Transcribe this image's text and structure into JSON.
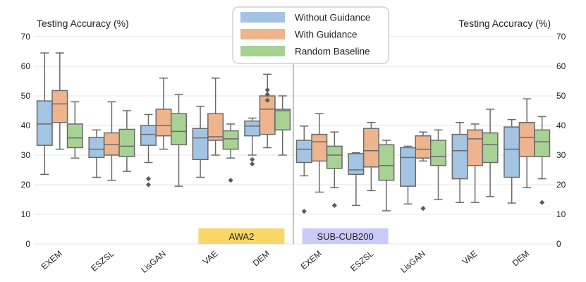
{
  "chart_data": {
    "type": "box",
    "ylabel_left": "Testing Accuracy (%)",
    "ylabel_right": "Testing Accuracy (%)",
    "ylim": [
      0,
      70
    ],
    "yticks": [
      0,
      10,
      20,
      30,
      40,
      50,
      60,
      70
    ],
    "grid": "horizontal",
    "legend_position": "top-center",
    "datasets": [
      {
        "name": "AWA2",
        "categories": [
          "EXEM",
          "ESZSL",
          "LisGAN",
          "VAE",
          "DEM"
        ],
        "color": "#f9d766"
      },
      {
        "name": "SUB-CUB200",
        "categories": [
          "EXEM",
          "ESZSL",
          "LisGAN",
          "VAE",
          "DEM"
        ],
        "color": "#c9c9fa"
      }
    ],
    "categories": [
      "EXEM",
      "ESZSL",
      "LisGAN",
      "VAE",
      "DEM",
      "EXEM",
      "ESZSL",
      "LisGAN",
      "VAE",
      "DEM"
    ],
    "series": [
      {
        "name": "Without Guidance",
        "color": "#a4c4e4",
        "boxes": [
          {
            "whislo": 23.5,
            "q1": 33.3,
            "med": 40.5,
            "q3": 48.3,
            "whishi": 64.5,
            "fliers": []
          },
          {
            "whislo": 22.5,
            "q1": 29.2,
            "med": 32.0,
            "q3": 36.0,
            "whishi": 38.5,
            "fliers": []
          },
          {
            "whislo": 27.5,
            "q1": 33.3,
            "med": 37.0,
            "q3": 40.0,
            "whishi": 43.7,
            "fliers": [
              20.0,
              22.0
            ]
          },
          {
            "whislo": 22.5,
            "q1": 28.5,
            "med": 35.8,
            "q3": 39.0,
            "whishi": 46.5,
            "fliers": []
          },
          {
            "whislo": 30.0,
            "q1": 36.5,
            "med": 39.8,
            "q3": 41.5,
            "whishi": 42.5,
            "fliers": [
              27.0,
              28.5
            ]
          },
          {
            "whislo": 23.0,
            "q1": 27.5,
            "med": 32.0,
            "q3": 35.0,
            "whishi": 39.8,
            "fliers": [
              11.0
            ]
          },
          {
            "whislo": 13.0,
            "q1": 23.5,
            "med": 25.0,
            "q3": 30.5,
            "whishi": 30.8,
            "fliers": []
          },
          {
            "whislo": 13.5,
            "q1": 19.5,
            "med": 29.2,
            "q3": 32.5,
            "whishi": 33.0,
            "fliers": []
          },
          {
            "whislo": 14.0,
            "q1": 22.0,
            "med": 31.5,
            "q3": 37.0,
            "whishi": 41.0,
            "fliers": []
          },
          {
            "whislo": 13.8,
            "q1": 22.5,
            "med": 32.0,
            "q3": 39.5,
            "whishi": 42.0,
            "fliers": []
          }
        ]
      },
      {
        "name": "With Guidance",
        "color": "#eeb48e",
        "boxes": [
          {
            "whislo": 32.0,
            "q1": 41.0,
            "med": 47.3,
            "q3": 51.8,
            "whishi": 64.5,
            "fliers": []
          },
          {
            "whislo": 21.5,
            "q1": 30.0,
            "med": 33.5,
            "q3": 37.5,
            "whishi": 48.0,
            "fliers": []
          },
          {
            "whislo": 32.0,
            "q1": 36.5,
            "med": 40.0,
            "q3": 45.5,
            "whishi": 56.0,
            "fliers": []
          },
          {
            "whislo": 30.0,
            "q1": 35.0,
            "med": 36.2,
            "q3": 44.0,
            "whishi": 56.0,
            "fliers": []
          },
          {
            "whislo": 32.5,
            "q1": 37.0,
            "med": 45.5,
            "q3": 50.0,
            "whishi": 57.3,
            "fliers": [
              48.5,
              50.5,
              52.0
            ]
          },
          {
            "whislo": 17.5,
            "q1": 28.0,
            "med": 34.5,
            "q3": 37.0,
            "whishi": 44.0,
            "fliers": []
          },
          {
            "whislo": 18.0,
            "q1": 26.0,
            "med": 31.5,
            "q3": 39.0,
            "whishi": 41.0,
            "fliers": []
          },
          {
            "whislo": 28.0,
            "q1": 29.0,
            "med": 32.0,
            "q3": 36.5,
            "whishi": 37.8,
            "fliers": [
              12.0
            ]
          },
          {
            "whislo": 14.0,
            "q1": 26.5,
            "med": 35.5,
            "q3": 38.5,
            "whishi": 40.5,
            "fliers": []
          },
          {
            "whislo": 19.0,
            "q1": 29.5,
            "med": 36.0,
            "q3": 41.0,
            "whishi": 49.0,
            "fliers": []
          }
        ]
      },
      {
        "name": "Random Baseline",
        "color": "#a8d194",
        "boxes": [
          {
            "whislo": 29.0,
            "q1": 32.5,
            "med": 35.8,
            "q3": 40.5,
            "whishi": 48.0,
            "fliers": []
          },
          {
            "whislo": 24.5,
            "q1": 29.5,
            "med": 33.0,
            "q3": 38.7,
            "whishi": 45.0,
            "fliers": []
          },
          {
            "whislo": 19.5,
            "q1": 33.5,
            "med": 38.0,
            "q3": 44.0,
            "whishi": 50.5,
            "fliers": []
          },
          {
            "whislo": 29.0,
            "q1": 32.0,
            "med": 35.5,
            "q3": 38.2,
            "whishi": 40.5,
            "fliers": [
              21.5
            ]
          },
          {
            "whislo": 30.0,
            "q1": 38.5,
            "med": 45.0,
            "q3": 45.5,
            "whishi": 50.0,
            "fliers": []
          },
          {
            "whislo": 19.0,
            "q1": 25.5,
            "med": 30.0,
            "q3": 33.0,
            "whishi": 37.8,
            "fliers": [
              13.0
            ]
          },
          {
            "whislo": 11.2,
            "q1": 21.5,
            "med": 26.5,
            "q3": 33.5,
            "whishi": 35.0,
            "fliers": []
          },
          {
            "whislo": 15.0,
            "q1": 26.5,
            "med": 29.5,
            "q3": 35.0,
            "whishi": 38.5,
            "fliers": []
          },
          {
            "whislo": 16.0,
            "q1": 27.5,
            "med": 33.5,
            "q3": 37.5,
            "whishi": 45.5,
            "fliers": []
          },
          {
            "whislo": 22.0,
            "q1": 29.5,
            "med": 34.5,
            "q3": 38.5,
            "whishi": 43.0,
            "fliers": [
              14.0
            ]
          }
        ]
      }
    ]
  }
}
